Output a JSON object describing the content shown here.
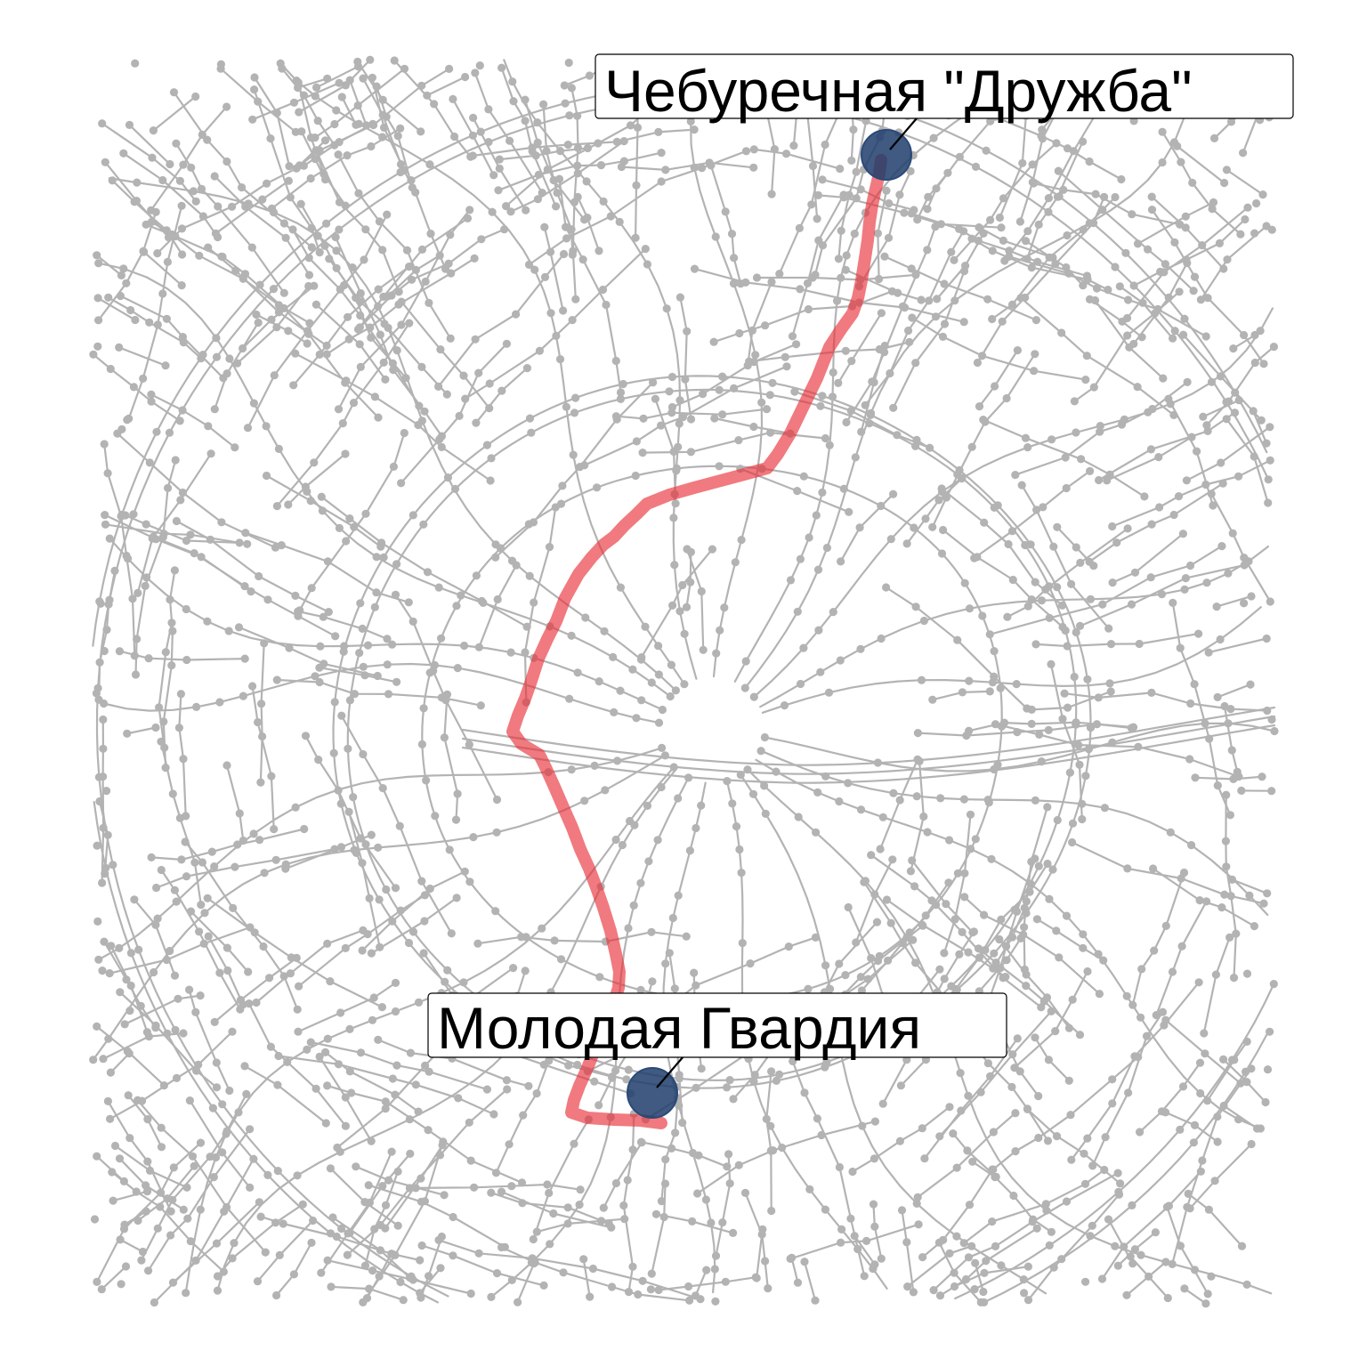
{
  "map": {
    "background_color": "#ffffff",
    "road_color": "#b3b3b3",
    "route": {
      "color": "#e8333b",
      "opacity": 0.65
    },
    "marker_color": "#1f3d6b",
    "places": [
      {
        "id": "start",
        "name": "Чебуречная \"Дружба\""
      },
      {
        "id": "end",
        "name": "Молодая Гвардия"
      }
    ]
  }
}
